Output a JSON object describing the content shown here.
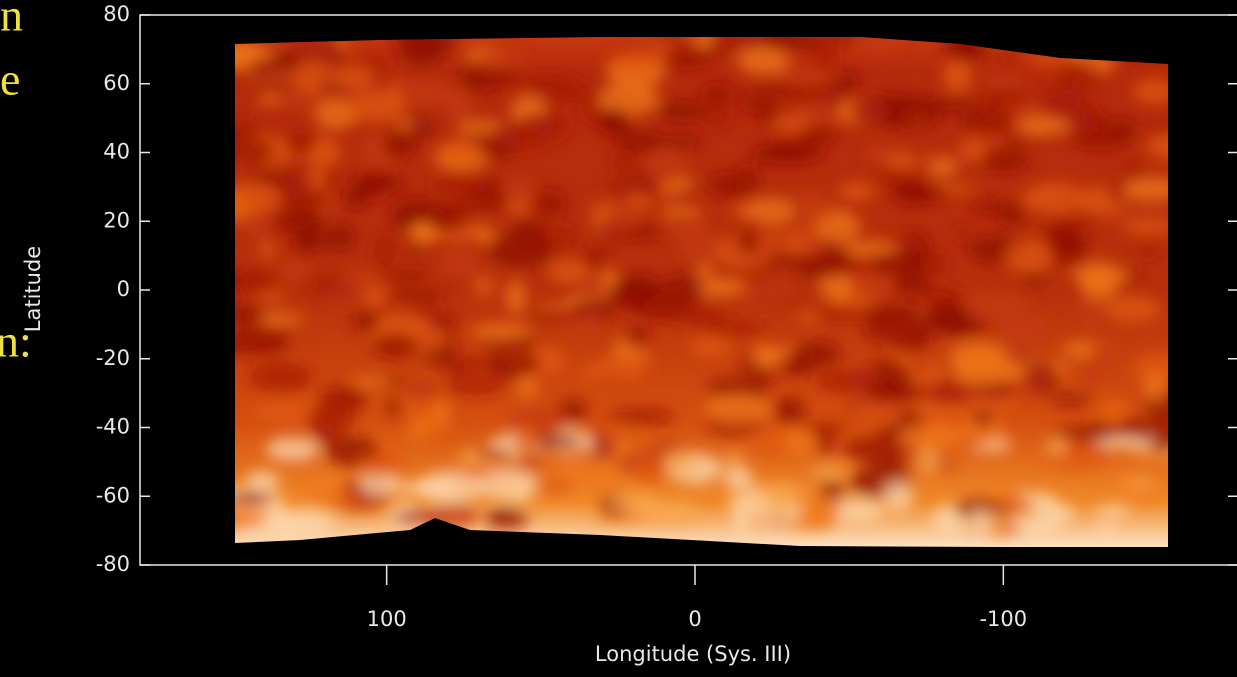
{
  "slide_text": [
    "n",
    "e",
    "n:"
  ],
  "chart_data": {
    "type": "heatmap",
    "xlabel": "Longitude (Sys. III)",
    "ylabel": "Latitude",
    "xlim": [
      180,
      -180
    ],
    "ylim": [
      -80,
      80
    ],
    "xticks": [
      100,
      0,
      -100
    ],
    "yticks": [
      80,
      60,
      40,
      20,
      0,
      -20,
      -40,
      -60,
      -80
    ]
  }
}
